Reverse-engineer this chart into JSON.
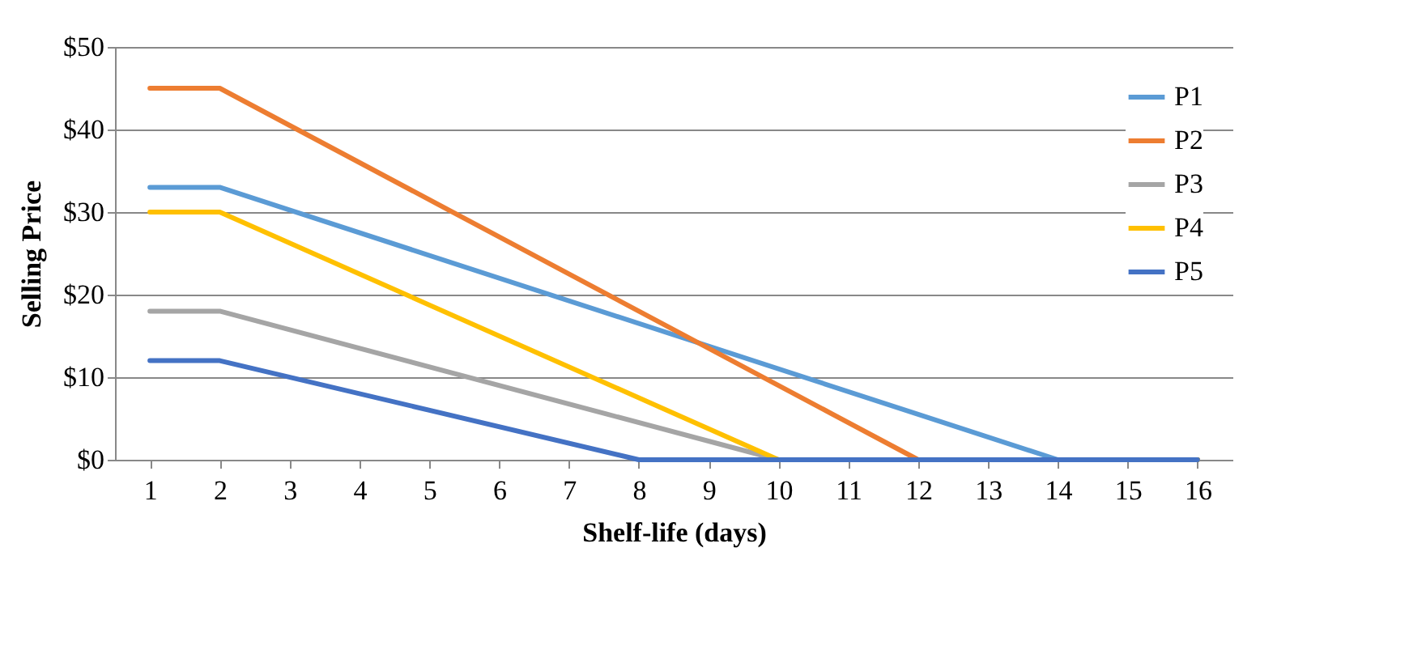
{
  "chart_data": {
    "type": "line",
    "xlabel": "Shelf-life (days)",
    "ylabel": "Selling Price",
    "xlim": [
      0.5,
      16.5
    ],
    "xticks": [
      1,
      2,
      3,
      4,
      5,
      6,
      7,
      8,
      9,
      10,
      11,
      12,
      13,
      14,
      15,
      16
    ],
    "ylim": [
      0,
      50
    ],
    "yticks": [
      {
        "value": 0,
        "label": "$0"
      },
      {
        "value": 10,
        "label": "$10"
      },
      {
        "value": 20,
        "label": "$20"
      },
      {
        "value": 30,
        "label": "$30"
      },
      {
        "value": 40,
        "label": "$40"
      },
      {
        "value": 50,
        "label": "$50"
      }
    ],
    "grid": "y",
    "legend": "top right",
    "marker": "none",
    "line_style": "solid",
    "series": [
      {
        "name": "P1",
        "color": "#5b9bd5",
        "x": [
          1,
          2,
          14,
          16
        ],
        "values": [
          33,
          33,
          0,
          0
        ]
      },
      {
        "name": "P2",
        "color": "#ed7d31",
        "x": [
          1,
          2,
          12,
          16
        ],
        "values": [
          45,
          45,
          0,
          0
        ]
      },
      {
        "name": "P3",
        "color": "#a5a5a5",
        "x": [
          1,
          2,
          10,
          16
        ],
        "values": [
          18,
          18,
          0,
          0
        ]
      },
      {
        "name": "P4",
        "color": "#ffc000",
        "x": [
          1,
          2,
          10,
          16
        ],
        "values": [
          30,
          30,
          0,
          0
        ]
      },
      {
        "name": "P5",
        "color": "#4472c4",
        "x": [
          1,
          2,
          8,
          16
        ],
        "values": [
          12,
          12,
          0,
          0
        ]
      }
    ]
  }
}
